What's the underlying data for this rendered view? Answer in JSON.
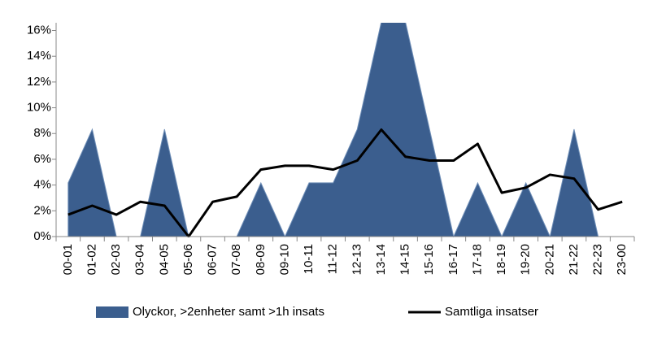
{
  "chart_data": {
    "type": "area-line",
    "categories": [
      "00-01",
      "01-02",
      "02-03",
      "03-04",
      "04-05",
      "05-06",
      "06-07",
      "07-08",
      "08-09",
      "09-10",
      "10-11",
      "11-12",
      "12-13",
      "13-14",
      "14-15",
      "15-16",
      "16-17",
      "17-18",
      "18-19",
      "19-20",
      "20-21",
      "21-22",
      "22-23",
      "23-00"
    ],
    "series": [
      {
        "name": "Olyckor, >2enheter samt >1h insats",
        "type": "area",
        "color": "#3b5e8e",
        "values": [
          4.17,
          8.33,
          0,
          0,
          8.33,
          0,
          0,
          0,
          4.17,
          0,
          4.17,
          4.17,
          8.33,
          16.67,
          16.67,
          8.33,
          0,
          4.17,
          0,
          4.17,
          0,
          8.33,
          0,
          0
        ]
      },
      {
        "name": "Samtliga insatser",
        "type": "line",
        "color": "#000000",
        "values": [
          1.7,
          2.4,
          1.7,
          2.7,
          2.4,
          0,
          2.7,
          3.1,
          5.2,
          5.5,
          5.5,
          5.2,
          5.9,
          8.3,
          6.2,
          5.9,
          5.9,
          7.2,
          3.4,
          3.8,
          4.8,
          4.5,
          2.1,
          2.7
        ]
      }
    ],
    "ylim": [
      0,
      16.6
    ],
    "yticks": [
      {
        "value": 0,
        "label": "0%"
      },
      {
        "value": 2,
        "label": "2%"
      },
      {
        "value": 4,
        "label": "4%"
      },
      {
        "value": 6,
        "label": "6%"
      },
      {
        "value": 8,
        "label": "8%"
      },
      {
        "value": 10,
        "label": "10%"
      },
      {
        "value": 12,
        "label": "12%"
      },
      {
        "value": 14,
        "label": "14%"
      },
      {
        "value": 16,
        "label": "16%"
      }
    ],
    "legend": "bottom"
  }
}
